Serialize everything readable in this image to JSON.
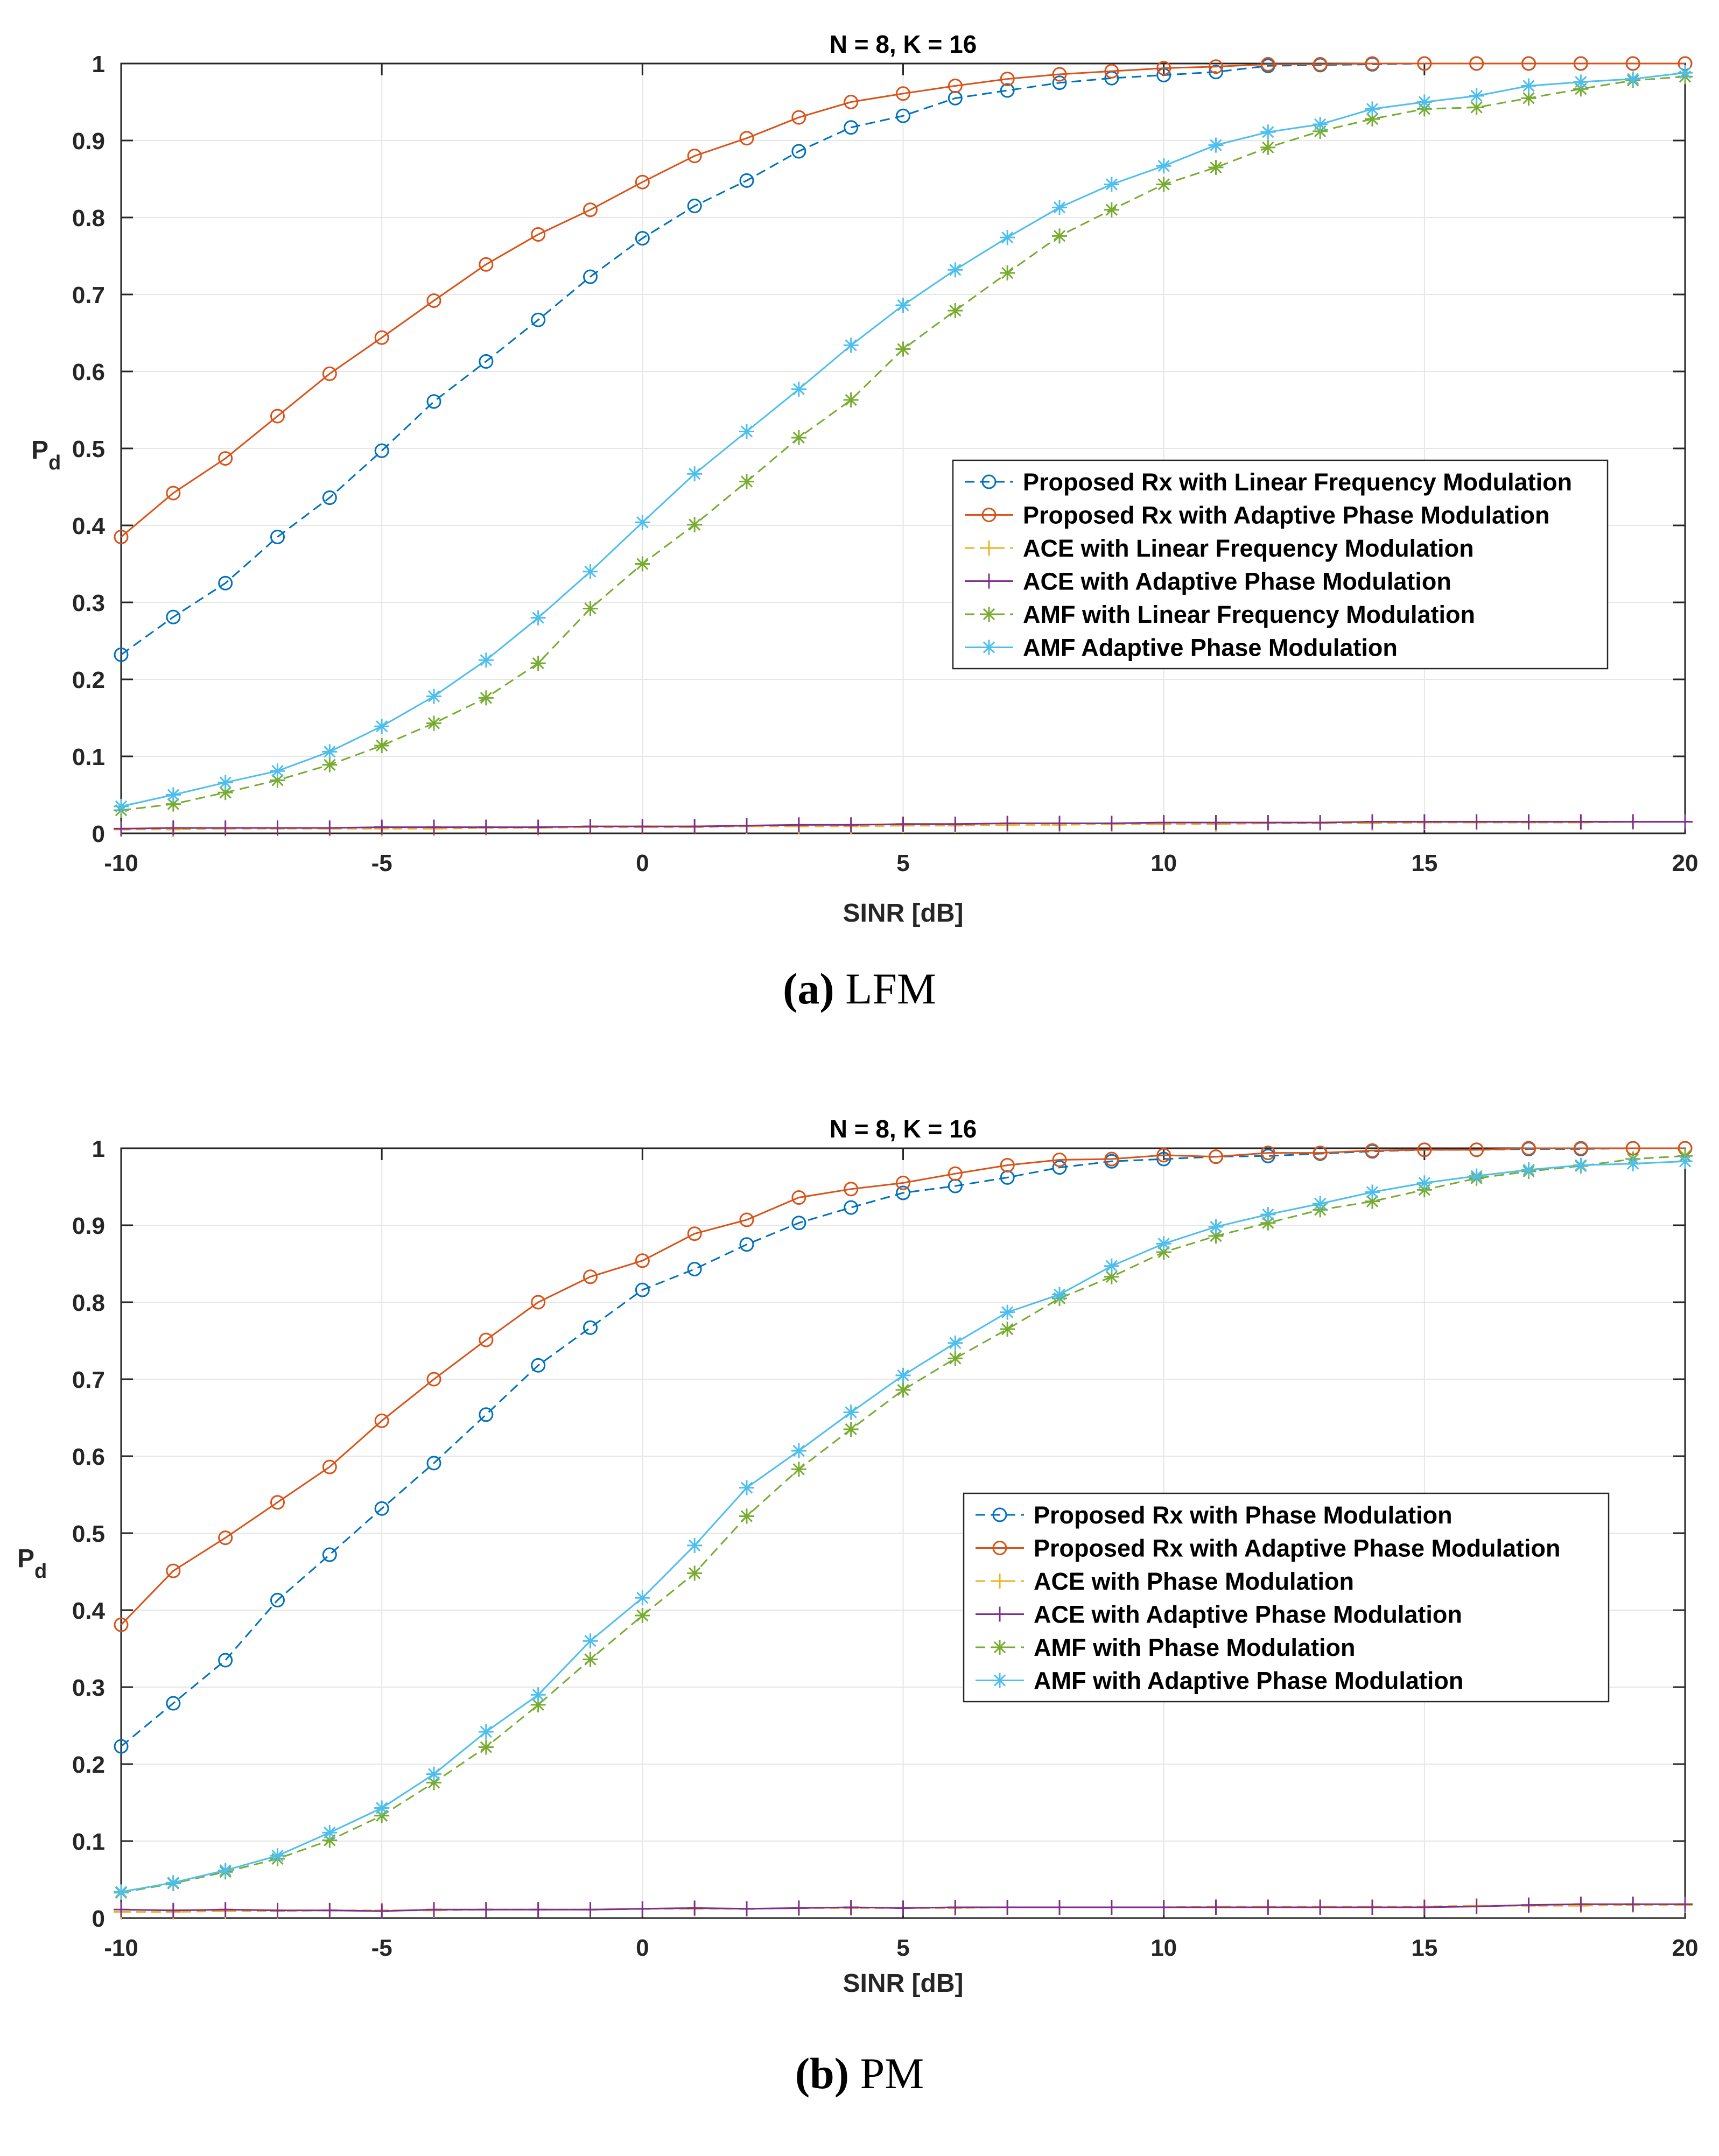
{
  "colors": {
    "blue": "#0072BD",
    "orange": "#D95319",
    "yellow": "#EDB120",
    "purple": "#7E2F8E",
    "green": "#77AC30",
    "cyan": "#4DBEEE",
    "grid": "#e6e6e6",
    "axis": "#262626"
  },
  "chart_data": [
    {
      "type": "line",
      "title": "N = 8, K = 16",
      "xlabel": "SINR [dB]",
      "ylabel_main": "P",
      "ylabel_sub": "d",
      "xlim": [
        -10,
        20
      ],
      "ylim": [
        0,
        1
      ],
      "xticks": [
        "-10",
        "-5",
        "0",
        "5",
        "10",
        "15",
        "20"
      ],
      "yticks": [
        "0",
        "0.1",
        "0.2",
        "0.3",
        "0.4",
        "0.5",
        "0.6",
        "0.7",
        "0.8",
        "0.9",
        "1"
      ],
      "grid": true,
      "legend_position": "right-middle",
      "caption_label": "(a)",
      "caption_text": "LFM",
      "x": [
        -10,
        -9,
        -8,
        -7,
        -6,
        -5,
        -4,
        -3,
        -2,
        -1,
        0,
        1,
        2,
        3,
        4,
        5,
        6,
        7,
        8,
        9,
        10,
        11,
        12,
        13,
        14,
        15,
        16,
        17,
        18,
        19,
        20
      ],
      "series": [
        {
          "name": "Proposed Rx with Linear Frequency Modulation",
          "color": "blue",
          "dash": "dashed",
          "marker": "circle",
          "values": [
            0.232,
            0.281,
            0.325,
            0.385,
            0.436,
            0.497,
            0.561,
            0.613,
            0.667,
            0.723,
            0.773,
            0.815,
            0.848,
            0.886,
            0.917,
            0.932,
            0.955,
            0.965,
            0.975,
            0.981,
            0.985,
            0.989,
            0.997,
            0.998,
            0.999,
            1.0,
            1.0,
            1.0,
            1.0,
            1.0,
            1.0
          ]
        },
        {
          "name": "Proposed Rx with Adaptive Phase Modulation",
          "color": "orange",
          "dash": "solid",
          "marker": "circle",
          "values": [
            0.385,
            0.442,
            0.487,
            0.542,
            0.597,
            0.644,
            0.692,
            0.739,
            0.778,
            0.81,
            0.846,
            0.88,
            0.903,
            0.93,
            0.95,
            0.961,
            0.971,
            0.98,
            0.986,
            0.99,
            0.994,
            0.996,
            0.999,
            0.999,
            1.0,
            1.0,
            1.0,
            1.0,
            1.0,
            1.0,
            1.0
          ]
        },
        {
          "name": "ACE with Linear Frequency Modulation",
          "color": "yellow",
          "dash": "dashed",
          "marker": "plus",
          "values": [
            0.005,
            0.005,
            0.006,
            0.006,
            0.006,
            0.006,
            0.006,
            0.007,
            0.007,
            0.008,
            0.008,
            0.008,
            0.009,
            0.009,
            0.009,
            0.01,
            0.01,
            0.011,
            0.011,
            0.012,
            0.012,
            0.012,
            0.013,
            0.013,
            0.013,
            0.014,
            0.014,
            0.014,
            0.014,
            0.015,
            0.015
          ]
        },
        {
          "name": "ACE with Adaptive Phase Modulation",
          "color": "purple",
          "dash": "solid",
          "marker": "plus",
          "values": [
            0.006,
            0.007,
            0.007,
            0.007,
            0.007,
            0.008,
            0.008,
            0.008,
            0.008,
            0.009,
            0.009,
            0.009,
            0.01,
            0.011,
            0.011,
            0.012,
            0.012,
            0.013,
            0.013,
            0.013,
            0.014,
            0.014,
            0.014,
            0.014,
            0.015,
            0.015,
            0.015,
            0.015,
            0.015,
            0.015,
            0.015
          ]
        },
        {
          "name": "AMF with Linear Frequency Modulation",
          "color": "green",
          "dash": "dashed",
          "marker": "asterisk",
          "values": [
            0.03,
            0.038,
            0.053,
            0.069,
            0.089,
            0.114,
            0.143,
            0.176,
            0.221,
            0.292,
            0.35,
            0.401,
            0.457,
            0.514,
            0.563,
            0.629,
            0.679,
            0.728,
            0.776,
            0.81,
            0.843,
            0.865,
            0.891,
            0.912,
            0.928,
            0.941,
            0.943,
            0.955,
            0.967,
            0.978,
            0.983
          ]
        },
        {
          "name": "AMF Adaptive Phase Modulation",
          "color": "cyan",
          "dash": "solid",
          "marker": "asterisk",
          "values": [
            0.035,
            0.05,
            0.066,
            0.081,
            0.106,
            0.139,
            0.178,
            0.225,
            0.28,
            0.34,
            0.404,
            0.467,
            0.522,
            0.577,
            0.634,
            0.686,
            0.732,
            0.774,
            0.813,
            0.843,
            0.867,
            0.894,
            0.911,
            0.921,
            0.941,
            0.95,
            0.958,
            0.971,
            0.976,
            0.98,
            0.988
          ]
        }
      ]
    },
    {
      "type": "line",
      "title": "N = 8, K = 16",
      "xlabel": "SINR [dB]",
      "ylabel_main": "P",
      "ylabel_sub": "d",
      "xlim": [
        -10,
        20
      ],
      "ylim": [
        0,
        1
      ],
      "xticks": [
        "-10",
        "-5",
        "0",
        "5",
        "10",
        "15",
        "20"
      ],
      "yticks": [
        "0",
        "0.1",
        "0.2",
        "0.3",
        "0.4",
        "0.5",
        "0.6",
        "0.7",
        "0.8",
        "0.9",
        "1"
      ],
      "grid": true,
      "legend_position": "right-middle",
      "caption_label": "(b)",
      "caption_text": "PM",
      "x": [
        -10,
        -9,
        -8,
        -7,
        -6,
        -5,
        -4,
        -3,
        -2,
        -1,
        0,
        1,
        2,
        3,
        4,
        5,
        6,
        7,
        8,
        9,
        10,
        11,
        12,
        13,
        14,
        15,
        16,
        17,
        18,
        19,
        20
      ],
      "series": [
        {
          "name": "Proposed Rx with Phase Modulation",
          "color": "blue",
          "dash": "dashed",
          "marker": "circle",
          "values": [
            0.223,
            0.279,
            0.335,
            0.413,
            0.472,
            0.532,
            0.591,
            0.654,
            0.718,
            0.767,
            0.816,
            0.843,
            0.875,
            0.903,
            0.923,
            0.942,
            0.951,
            0.962,
            0.975,
            0.983,
            0.986,
            0.989,
            0.99,
            0.993,
            0.996,
            0.998,
            0.998,
            0.999,
            0.999,
            1.0,
            1.0
          ]
        },
        {
          "name": "Proposed Rx with Adaptive Phase Modulation",
          "color": "orange",
          "dash": "solid",
          "marker": "circle",
          "values": [
            0.381,
            0.451,
            0.494,
            0.54,
            0.586,
            0.646,
            0.7,
            0.751,
            0.8,
            0.833,
            0.854,
            0.889,
            0.907,
            0.936,
            0.947,
            0.955,
            0.967,
            0.978,
            0.985,
            0.986,
            0.991,
            0.989,
            0.994,
            0.994,
            0.997,
            0.998,
            0.998,
            1.0,
            1.0,
            1.0,
            1.0
          ]
        },
        {
          "name": "ACE with Phase Modulation",
          "color": "yellow",
          "dash": "dashed",
          "marker": "plus",
          "values": [
            0.008,
            0.008,
            0.009,
            0.009,
            0.01,
            0.01,
            0.01,
            0.011,
            0.011,
            0.011,
            0.012,
            0.012,
            0.012,
            0.013,
            0.013,
            0.013,
            0.013,
            0.014,
            0.014,
            0.014,
            0.014,
            0.015,
            0.015,
            0.015,
            0.015,
            0.015,
            0.016,
            0.016,
            0.016,
            0.017,
            0.017
          ]
        },
        {
          "name": "ACE with Adaptive Phase Modulation",
          "color": "purple",
          "dash": "solid",
          "marker": "plus",
          "values": [
            0.011,
            0.01,
            0.011,
            0.01,
            0.01,
            0.009,
            0.011,
            0.011,
            0.011,
            0.011,
            0.012,
            0.013,
            0.012,
            0.013,
            0.014,
            0.013,
            0.014,
            0.014,
            0.014,
            0.014,
            0.014,
            0.014,
            0.014,
            0.014,
            0.014,
            0.014,
            0.015,
            0.017,
            0.018,
            0.018,
            0.018
          ]
        },
        {
          "name": "AMF with Phase Modulation",
          "color": "green",
          "dash": "dashed",
          "marker": "asterisk",
          "values": [
            0.033,
            0.045,
            0.06,
            0.077,
            0.101,
            0.133,
            0.176,
            0.222,
            0.277,
            0.336,
            0.393,
            0.448,
            0.522,
            0.583,
            0.635,
            0.686,
            0.727,
            0.765,
            0.805,
            0.833,
            0.865,
            0.886,
            0.903,
            0.92,
            0.931,
            0.946,
            0.961,
            0.97,
            0.977,
            0.986,
            0.99
          ]
        },
        {
          "name": "AMF with Adaptive Phase Modulation",
          "color": "cyan",
          "dash": "solid",
          "marker": "asterisk",
          "values": [
            0.034,
            0.046,
            0.062,
            0.081,
            0.111,
            0.143,
            0.187,
            0.242,
            0.29,
            0.36,
            0.416,
            0.484,
            0.559,
            0.607,
            0.657,
            0.705,
            0.747,
            0.787,
            0.81,
            0.847,
            0.876,
            0.898,
            0.914,
            0.928,
            0.943,
            0.955,
            0.964,
            0.972,
            0.978,
            0.98,
            0.983
          ]
        }
      ]
    }
  ]
}
